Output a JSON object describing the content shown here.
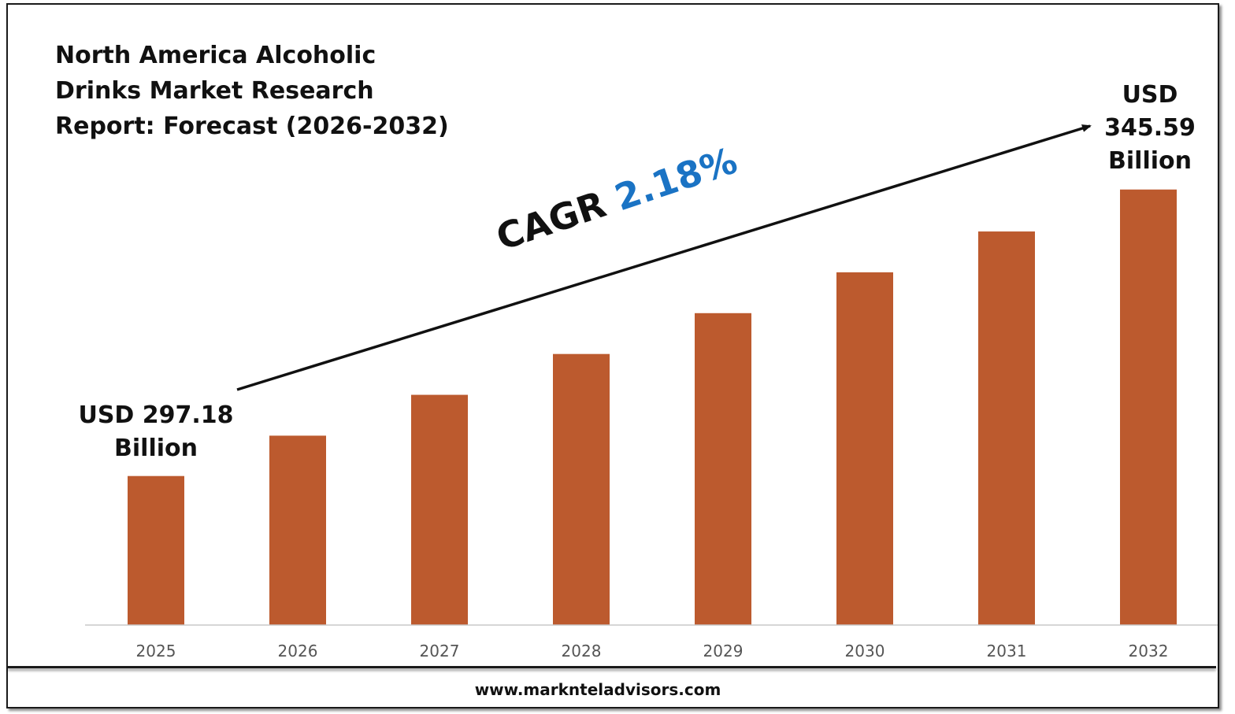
{
  "chart_data": {
    "type": "bar",
    "title": "North America Alcoholic\nDrinks Market Research\nReport: Forecast (2026-2032)",
    "categories": [
      "2025",
      "2026",
      "2027",
      "2028",
      "2029",
      "2030",
      "2031",
      "2032"
    ],
    "series": [
      {
        "values": [
          297.18,
          304.0,
          310.9,
          317.8,
          324.7,
          331.6,
          338.5,
          345.59
        ]
      }
    ],
    "unit": "USD Billion",
    "ylim": [
      272,
      355
    ],
    "grid": false,
    "legend": "none",
    "bar_color": "#bc5a2e",
    "annotations": {
      "start_label": "USD 297.18\nBillion",
      "end_label": "USD 345.59\nBillion",
      "cagr_prefix": "CAGR",
      "cagr_value": "2.18%",
      "cagr_color": "#1a73c4"
    }
  },
  "footer": {
    "url": "www.marknteladvisors.com"
  }
}
